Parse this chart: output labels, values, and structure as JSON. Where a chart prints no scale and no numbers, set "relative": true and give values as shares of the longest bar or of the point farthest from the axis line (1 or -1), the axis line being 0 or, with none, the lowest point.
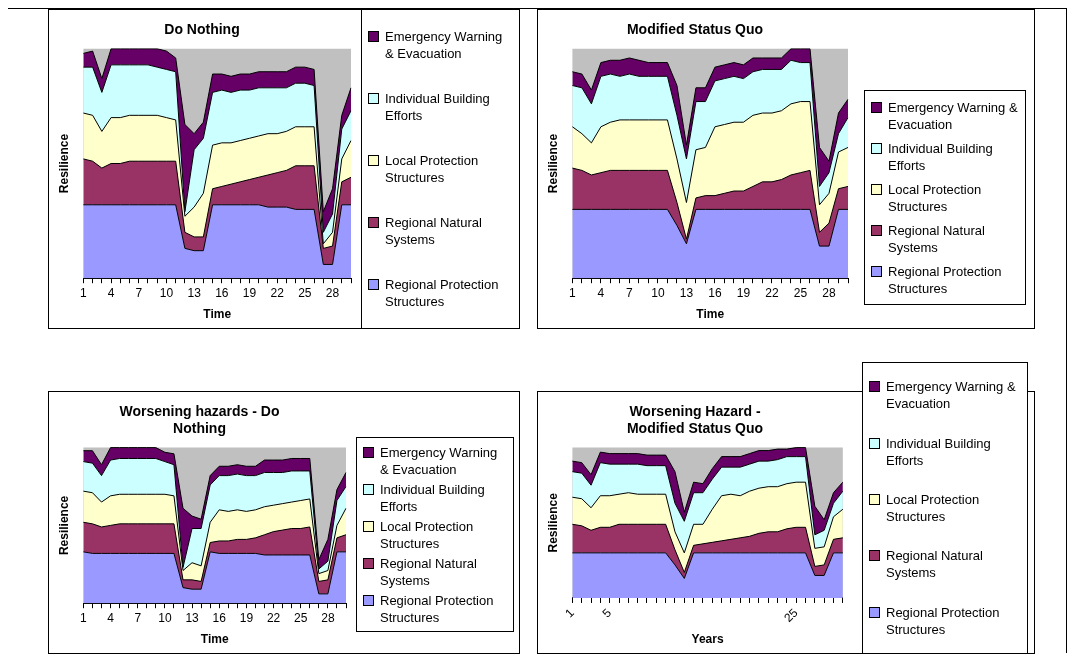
{
  "chart_data": [
    {
      "type": "area",
      "title": "Do Nothing",
      "xlabel": "Time",
      "ylabel": "Resilience",
      "relative": true,
      "stacked": true,
      "legend": "right",
      "categories": [
        "1",
        null,
        null,
        "4",
        null,
        null,
        "7",
        null,
        null,
        "10",
        null,
        null,
        "13",
        null,
        null,
        "16",
        null,
        null,
        "19",
        null,
        null,
        "22",
        null,
        null,
        "25",
        null,
        null,
        "28",
        null,
        null
      ],
      "series": [
        {
          "name": "Regional Protection Structures",
          "color": "#9999ff",
          "values": [
            0.32,
            0.32,
            0.32,
            0.32,
            0.32,
            0.32,
            0.32,
            0.32,
            0.32,
            0.32,
            0.32,
            0.13,
            0.12,
            0.12,
            0.32,
            0.32,
            0.32,
            0.32,
            0.32,
            0.32,
            0.31,
            0.31,
            0.31,
            0.3,
            0.3,
            0.3,
            0.06,
            0.06,
            0.32,
            0.32
          ]
        },
        {
          "name": "Regional Natural Systems",
          "color": "#993366",
          "values": [
            0.2,
            0.19,
            0.16,
            0.18,
            0.18,
            0.19,
            0.19,
            0.19,
            0.19,
            0.19,
            0.19,
            0.07,
            0.06,
            0.06,
            0.07,
            0.08,
            0.09,
            0.1,
            0.11,
            0.12,
            0.14,
            0.15,
            0.16,
            0.19,
            0.19,
            0.19,
            0.07,
            0.08,
            0.1,
            0.12
          ]
        },
        {
          "name": "Local Protection Structures",
          "color": "#ffffcc",
          "values": [
            0.2,
            0.2,
            0.16,
            0.2,
            0.2,
            0.2,
            0.2,
            0.2,
            0.2,
            0.19,
            0.18,
            0.07,
            0.13,
            0.19,
            0.19,
            0.19,
            0.18,
            0.18,
            0.18,
            0.18,
            0.18,
            0.17,
            0.17,
            0.17,
            0.17,
            0.17,
            0.02,
            0.06,
            0.1,
            0.16
          ]
        },
        {
          "name": "Individual Building Efforts",
          "color": "#ccffff",
          "values": [
            0.2,
            0.21,
            0.17,
            0.23,
            0.23,
            0.22,
            0.22,
            0.22,
            0.21,
            0.21,
            0.21,
            0.02,
            0.25,
            0.24,
            0.23,
            0.23,
            0.22,
            0.22,
            0.21,
            0.21,
            0.2,
            0.2,
            0.19,
            0.19,
            0.19,
            0.18,
            0.05,
            0.08,
            0.13,
            0.13
          ]
        },
        {
          "name": "Emergency Warning & Evacuation",
          "color": "#660066",
          "values": [
            0.06,
            0.07,
            0.06,
            0.07,
            0.07,
            0.07,
            0.07,
            0.07,
            0.08,
            0.08,
            0.06,
            0.38,
            0.07,
            0.07,
            0.08,
            0.07,
            0.07,
            0.07,
            0.07,
            0.07,
            0.07,
            0.07,
            0.07,
            0.07,
            0.07,
            0.07,
            0.09,
            0.11,
            0.06,
            0.1
          ]
        }
      ]
    },
    {
      "type": "area",
      "title": "Modified Status Quo",
      "xlabel": "Time",
      "ylabel": "Resilience",
      "relative": true,
      "stacked": true,
      "legend": "right",
      "categories": [
        "1",
        null,
        null,
        "4",
        null,
        null,
        "7",
        null,
        null,
        "10",
        null,
        null,
        "13",
        null,
        null,
        "16",
        null,
        null,
        "19",
        null,
        null,
        "22",
        null,
        null,
        "25",
        null,
        null,
        "28",
        null,
        null
      ],
      "series": [
        {
          "name": "Regional Protection Structures",
          "color": "#9999ff",
          "values": [
            0.3,
            0.3,
            0.3,
            0.3,
            0.3,
            0.3,
            0.3,
            0.3,
            0.3,
            0.3,
            0.3,
            0.23,
            0.15,
            0.3,
            0.3,
            0.3,
            0.3,
            0.3,
            0.3,
            0.3,
            0.3,
            0.3,
            0.3,
            0.3,
            0.3,
            0.3,
            0.14,
            0.14,
            0.3,
            0.3
          ]
        },
        {
          "name": "Regional Natural Systems",
          "color": "#993366",
          "values": [
            0.18,
            0.17,
            0.15,
            0.16,
            0.17,
            0.17,
            0.17,
            0.17,
            0.17,
            0.17,
            0.17,
            0.1,
            0.02,
            0.05,
            0.06,
            0.06,
            0.07,
            0.08,
            0.08,
            0.1,
            0.12,
            0.12,
            0.13,
            0.15,
            0.16,
            0.17,
            0.06,
            0.1,
            0.09,
            0.1
          ]
        },
        {
          "name": "Local Protection Structures",
          "color": "#ffffcc",
          "values": [
            0.18,
            0.16,
            0.14,
            0.2,
            0.21,
            0.22,
            0.22,
            0.22,
            0.22,
            0.22,
            0.22,
            0.19,
            0.16,
            0.21,
            0.21,
            0.3,
            0.3,
            0.3,
            0.3,
            0.31,
            0.3,
            0.3,
            0.3,
            0.31,
            0.31,
            0.3,
            0.12,
            0.13,
            0.16,
            0.17
          ]
        },
        {
          "name": "Individual Building Efforts",
          "color": "#ccffff",
          "values": [
            0.18,
            0.2,
            0.17,
            0.22,
            0.21,
            0.19,
            0.2,
            0.19,
            0.19,
            0.19,
            0.19,
            0.19,
            0.19,
            0.21,
            0.2,
            0.2,
            0.2,
            0.2,
            0.19,
            0.19,
            0.19,
            0.19,
            0.18,
            0.19,
            0.17,
            0.17,
            0.08,
            0.09,
            0.08,
            0.13
          ]
        },
        {
          "name": "Emergency Warning & Evacuation",
          "color": "#660066",
          "values": [
            0.06,
            0.06,
            0.06,
            0.06,
            0.06,
            0.07,
            0.07,
            0.07,
            0.06,
            0.06,
            0.06,
            0.13,
            0.06,
            0.06,
            0.06,
            0.06,
            0.06,
            0.06,
            0.06,
            0.06,
            0.05,
            0.05,
            0.05,
            0.05,
            0.06,
            0.06,
            0.17,
            0.05,
            0.09,
            0.08
          ]
        }
      ]
    },
    {
      "type": "area",
      "title": "Worsening hazards - Do Nothing",
      "xlabel": "Time",
      "ylabel": "Resilience",
      "relative": true,
      "stacked": true,
      "legend": "right",
      "categories": [
        "1",
        null,
        null,
        "4",
        null,
        null,
        "7",
        null,
        null,
        "10",
        null,
        null,
        "13",
        null,
        null,
        "16",
        null,
        null,
        "19",
        null,
        null,
        "22",
        null,
        null,
        "25",
        null,
        null,
        "28",
        null,
        null
      ],
      "series": [
        {
          "name": "Regional Protection Structures",
          "color": "#9999ff",
          "values": [
            0.33,
            0.32,
            0.32,
            0.32,
            0.32,
            0.32,
            0.32,
            0.32,
            0.32,
            0.32,
            0.32,
            0.1,
            0.09,
            0.09,
            0.33,
            0.32,
            0.32,
            0.32,
            0.32,
            0.32,
            0.31,
            0.31,
            0.31,
            0.31,
            0.31,
            0.31,
            0.06,
            0.06,
            0.33,
            0.33
          ]
        },
        {
          "name": "Regional Natural Systems",
          "color": "#993366",
          "values": [
            0.19,
            0.19,
            0.17,
            0.18,
            0.19,
            0.19,
            0.19,
            0.19,
            0.19,
            0.19,
            0.19,
            0.05,
            0.06,
            0.05,
            0.06,
            0.08,
            0.08,
            0.09,
            0.09,
            0.1,
            0.13,
            0.15,
            0.16,
            0.17,
            0.17,
            0.18,
            0.08,
            0.09,
            0.09,
            0.11
          ]
        },
        {
          "name": "Local Protection Structures",
          "color": "#ffffcc",
          "values": [
            0.2,
            0.2,
            0.16,
            0.19,
            0.19,
            0.19,
            0.19,
            0.19,
            0.19,
            0.19,
            0.18,
            0.06,
            0.11,
            0.1,
            0.13,
            0.2,
            0.19,
            0.19,
            0.18,
            0.18,
            0.18,
            0.17,
            0.17,
            0.17,
            0.18,
            0.18,
            0.05,
            0.06,
            0.08,
            0.17
          ]
        },
        {
          "name": "Individual Building Efforts",
          "color": "#ccffff",
          "values": [
            0.19,
            0.19,
            0.17,
            0.23,
            0.23,
            0.23,
            0.23,
            0.23,
            0.23,
            0.21,
            0.2,
            0.02,
            0.22,
            0.24,
            0.24,
            0.22,
            0.23,
            0.23,
            0.23,
            0.22,
            0.22,
            0.21,
            0.2,
            0.2,
            0.19,
            0.18,
            0.03,
            0.06,
            0.16,
            0.14
          ]
        },
        {
          "name": "Emergency Warning & Evacuation",
          "color": "#660066",
          "values": [
            0.07,
            0.08,
            0.07,
            0.08,
            0.07,
            0.07,
            0.07,
            0.07,
            0.07,
            0.06,
            0.07,
            0.38,
            0.08,
            0.06,
            0.06,
            0.06,
            0.06,
            0.06,
            0.06,
            0.06,
            0.08,
            0.08,
            0.08,
            0.08,
            0.08,
            0.08,
            0.06,
            0.14,
            0.07,
            0.09
          ]
        }
      ]
    },
    {
      "type": "area",
      "title": "Worsening Hazard - Modified Status Quo",
      "xlabel": "Years",
      "ylabel": "Resilience",
      "relative": true,
      "stacked": true,
      "legend": "right",
      "categories": [
        "1",
        null,
        null,
        null,
        "5",
        null,
        null,
        null,
        null,
        null,
        null,
        null,
        null,
        null,
        null,
        null,
        null,
        null,
        null,
        null,
        null,
        null,
        null,
        null,
        "25",
        null,
        null,
        null,
        null,
        null
      ],
      "series": [
        {
          "name": "Regional Protection Structures",
          "color": "#9999ff",
          "values": [
            0.3,
            0.3,
            0.3,
            0.3,
            0.3,
            0.3,
            0.3,
            0.3,
            0.3,
            0.3,
            0.3,
            0.22,
            0.13,
            0.3,
            0.3,
            0.3,
            0.3,
            0.3,
            0.3,
            0.3,
            0.3,
            0.3,
            0.3,
            0.3,
            0.3,
            0.3,
            0.15,
            0.15,
            0.3,
            0.3
          ]
        },
        {
          "name": "Regional Natural Systems",
          "color": "#993366",
          "values": [
            0.19,
            0.18,
            0.15,
            0.17,
            0.17,
            0.19,
            0.19,
            0.19,
            0.19,
            0.19,
            0.19,
            0.1,
            0.04,
            0.05,
            0.06,
            0.07,
            0.08,
            0.09,
            0.1,
            0.11,
            0.13,
            0.14,
            0.14,
            0.16,
            0.17,
            0.17,
            0.06,
            0.07,
            0.09,
            0.1
          ]
        },
        {
          "name": "Local Protection Structures",
          "color": "#ffffcc",
          "values": [
            0.18,
            0.18,
            0.15,
            0.21,
            0.21,
            0.2,
            0.21,
            0.2,
            0.2,
            0.2,
            0.2,
            0.12,
            0.13,
            0.14,
            0.13,
            0.22,
            0.3,
            0.3,
            0.28,
            0.3,
            0.3,
            0.3,
            0.3,
            0.3,
            0.3,
            0.3,
            0.12,
            0.12,
            0.15,
            0.19
          ]
        },
        {
          "name": "Individual Building Efforts",
          "color": "#ccffff",
          "values": [
            0.17,
            0.17,
            0.15,
            0.22,
            0.21,
            0.2,
            0.19,
            0.2,
            0.19,
            0.19,
            0.19,
            0.19,
            0.21,
            0.21,
            0.21,
            0.2,
            0.19,
            0.18,
            0.19,
            0.18,
            0.18,
            0.17,
            0.18,
            0.18,
            0.17,
            0.17,
            0.09,
            0.11,
            0.09,
            0.12
          ]
        },
        {
          "name": "Emergency Warning & Evacuation",
          "color": "#660066",
          "values": [
            0.07,
            0.07,
            0.07,
            0.07,
            0.07,
            0.07,
            0.07,
            0.07,
            0.07,
            0.07,
            0.07,
            0.21,
            0.06,
            0.07,
            0.06,
            0.07,
            0.07,
            0.07,
            0.07,
            0.07,
            0.07,
            0.07,
            0.07,
            0.05,
            0.06,
            0.06,
            0.19,
            0.07,
            0.07,
            0.06
          ]
        }
      ]
    }
  ]
}
